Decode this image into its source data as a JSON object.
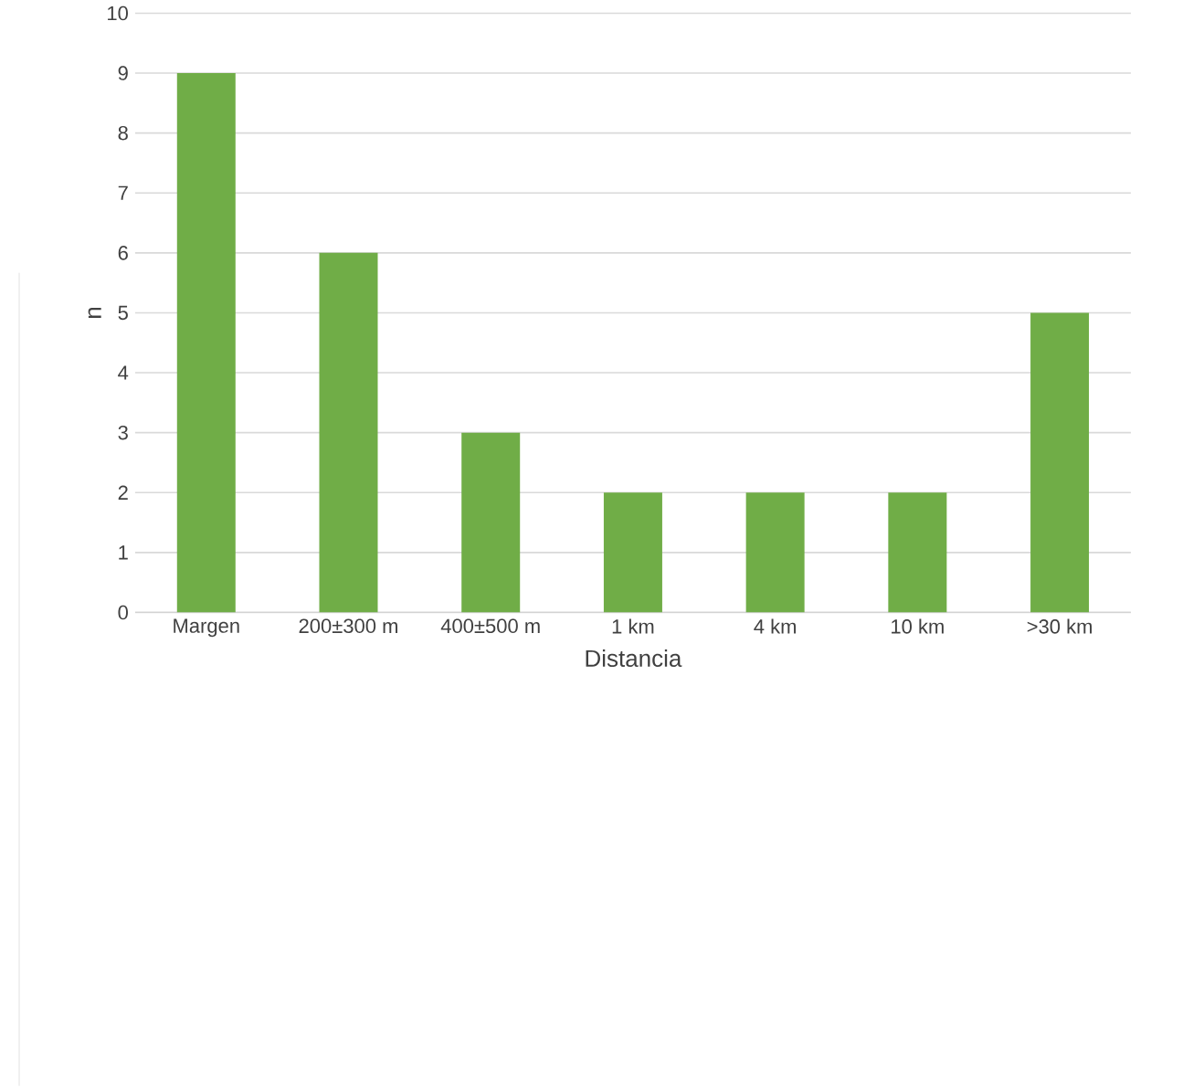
{
  "chart_data": {
    "type": "bar",
    "xlabel": "Distancia",
    "ylabel": "n",
    "categories": [
      "Margen",
      "200±300 m",
      "400±500 m",
      "1 km",
      "4 km",
      "10 km",
      ">30 km"
    ],
    "values": [
      9,
      6,
      3,
      2,
      2,
      2,
      5
    ],
    "color": "#70ad47",
    "ylim": [
      0,
      10
    ],
    "yticks": [
      0,
      1,
      2,
      3,
      4,
      5,
      6,
      7,
      8,
      9,
      10
    ],
    "grid": "y"
  }
}
